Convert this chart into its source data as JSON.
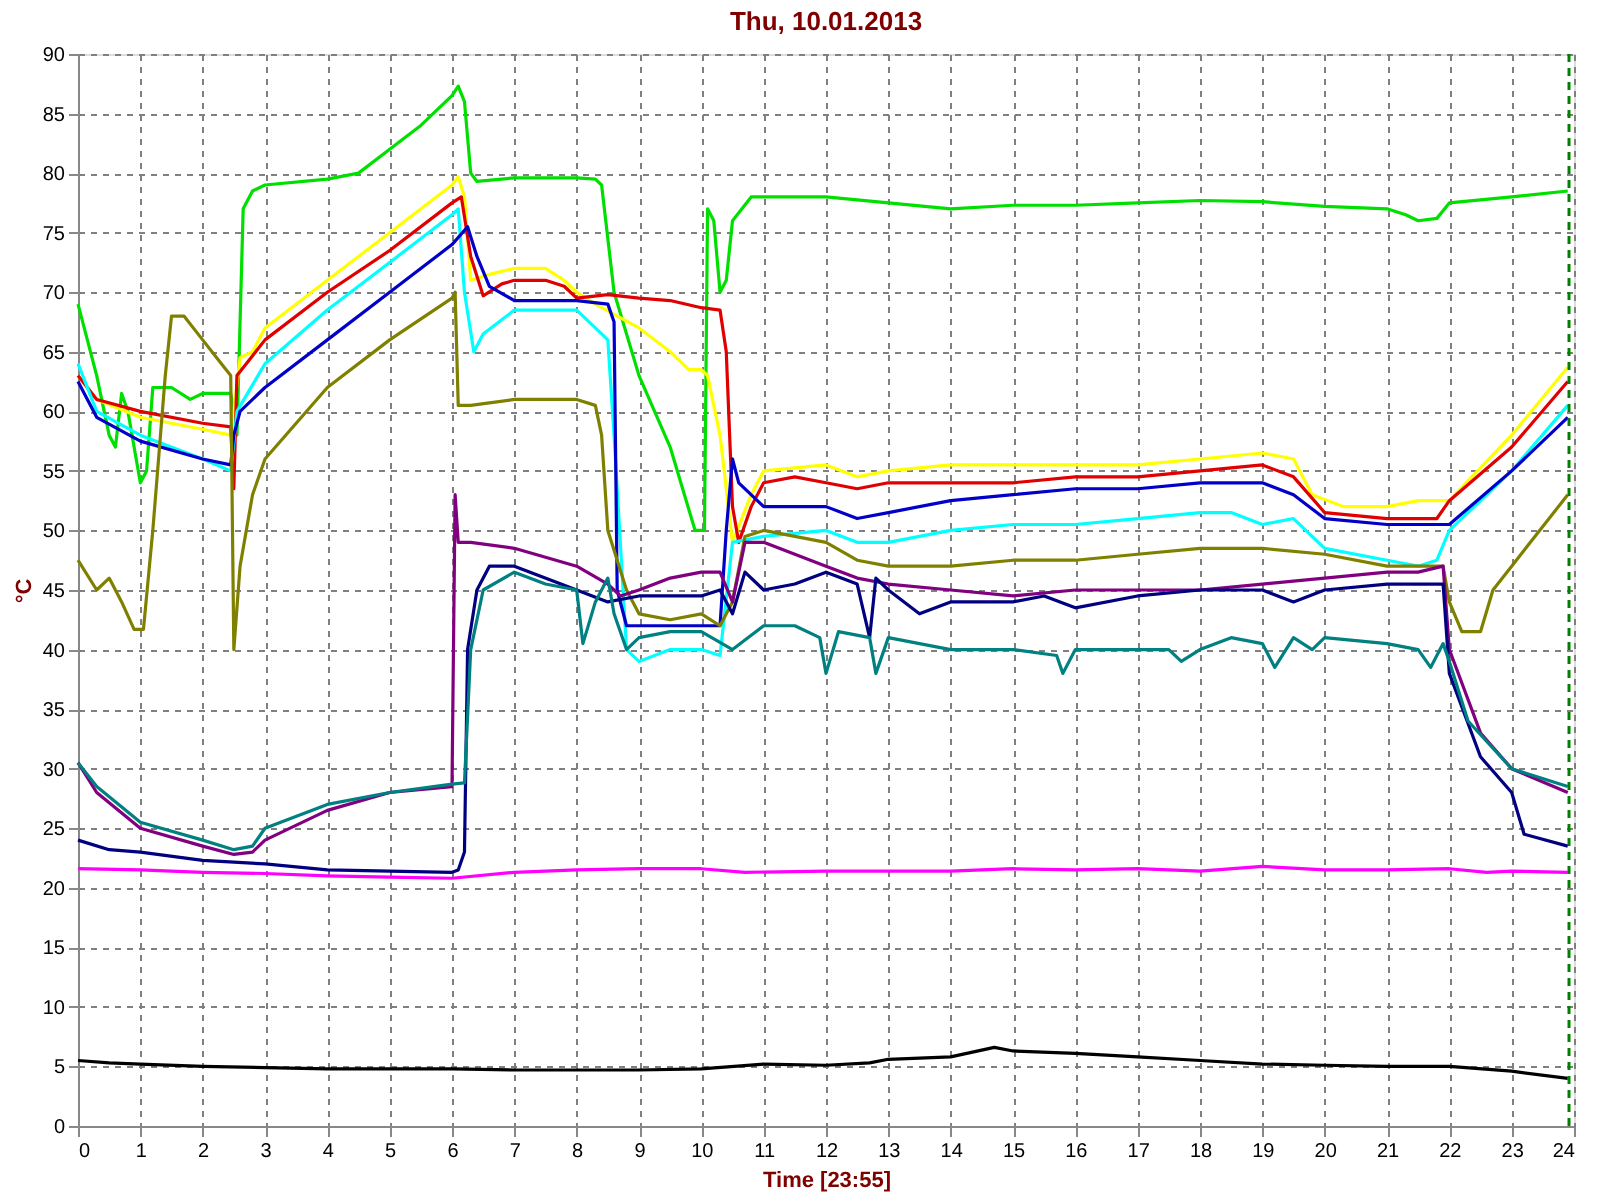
{
  "chart_data": {
    "type": "line",
    "title": "Thu, 10.01.2013",
    "xlabel": "Time [23:55]",
    "ylabel": "°C",
    "xlim": [
      0,
      24
    ],
    "ylim": [
      0,
      90
    ],
    "xticks": [
      0,
      1,
      2,
      3,
      4,
      5,
      6,
      7,
      8,
      9,
      10,
      11,
      12,
      13,
      14,
      15,
      16,
      17,
      18,
      19,
      20,
      21,
      22,
      23,
      24
    ],
    "yticks": [
      0,
      5,
      10,
      15,
      20,
      25,
      30,
      35,
      40,
      45,
      50,
      55,
      60,
      65,
      70,
      75,
      80,
      85,
      90
    ],
    "grid": true,
    "marker": "none",
    "line_style": "solid",
    "ref_lines": [
      {
        "axis": "x",
        "value": 23.92,
        "label": null,
        "color": "#008000",
        "line_style": "dashed"
      }
    ],
    "series": [
      {
        "color": "#00e000",
        "x": [
          0,
          0.3,
          0.5,
          0.6,
          0.7,
          0.8,
          1.0,
          1.1,
          1.2,
          1.5,
          1.8,
          2.0,
          2.45,
          2.55,
          2.65,
          2.8,
          3.0,
          4.0,
          4.5,
          5.0,
          5.5,
          6.0,
          6.1,
          6.2,
          6.3,
          6.4,
          7.0,
          8.0,
          8.3,
          8.4,
          8.6,
          9.0,
          9.5,
          9.9,
          10.05,
          10.1,
          10.2,
          10.3,
          10.4,
          10.5,
          10.8,
          12,
          13,
          14,
          15,
          16,
          17,
          18,
          19,
          20,
          21,
          21.3,
          21.5,
          21.8,
          22,
          23,
          23.9
        ],
        "values": [
          69,
          63,
          58,
          57,
          61.5,
          60,
          54,
          55,
          62,
          62,
          61,
          61.5,
          61.5,
          58,
          77,
          78.5,
          79,
          79.5,
          80,
          82,
          84,
          86.5,
          87.3,
          86,
          80,
          79.3,
          79.6,
          79.6,
          79.5,
          79,
          70,
          63,
          57,
          50,
          50,
          77,
          76,
          70,
          71,
          76,
          78,
          78,
          77.5,
          77,
          77.3,
          77.3,
          77.5,
          77.7,
          77.6,
          77.2,
          77,
          76.5,
          76,
          76.2,
          77.5,
          78,
          78.5
        ]
      },
      {
        "color": "#ffff00",
        "x": [
          0,
          0.3,
          1,
          2,
          2.45,
          2.5,
          2.6,
          2.8,
          3,
          4,
          5,
          6,
          6.1,
          6.2,
          6.3,
          6.6,
          7,
          7.5,
          7.8,
          8,
          8.3,
          9,
          9.5,
          9.8,
          10,
          10.1,
          10.3,
          10.5,
          10.8,
          11,
          12,
          12.5,
          13,
          14,
          15,
          16,
          17,
          18,
          19,
          19.5,
          19.8,
          20.3,
          21,
          21.5,
          22,
          23,
          23.9
        ],
        "values": [
          63,
          61,
          59.5,
          58.5,
          58,
          60,
          64.5,
          65,
          67,
          71,
          75,
          79,
          79.7,
          78,
          71,
          71.5,
          72,
          72,
          71,
          70,
          69,
          67,
          65,
          63.5,
          63.5,
          63,
          58,
          49,
          53,
          55,
          55.5,
          54.5,
          55,
          55.5,
          55.5,
          55.5,
          55.5,
          56,
          56.5,
          56,
          53,
          52,
          52,
          52.5,
          52.5,
          58,
          63.7
        ]
      },
      {
        "color": "#e00000",
        "x": [
          0,
          0.3,
          1,
          2,
          2.45,
          2.5,
          2.55,
          2.7,
          3,
          4,
          5,
          6,
          6.15,
          6.3,
          6.5,
          6.8,
          7,
          7.5,
          7.8,
          8,
          8.5,
          9,
          9.5,
          10,
          10.3,
          10.4,
          10.5,
          10.6,
          10.8,
          11,
          11.5,
          12,
          12.5,
          13,
          14,
          15,
          16,
          17,
          18,
          19,
          19.5,
          20,
          21,
          21.5,
          21.8,
          22,
          23,
          23.9
        ],
        "values": [
          63,
          61,
          60,
          59,
          58.7,
          53.5,
          63,
          64,
          66,
          70,
          73.5,
          77.5,
          78,
          73,
          69.7,
          70.7,
          71,
          71,
          70.5,
          69.5,
          69.8,
          69.5,
          69.3,
          68.7,
          68.5,
          65,
          52,
          49,
          52,
          54,
          54.5,
          54,
          53.5,
          54,
          54,
          54,
          54.5,
          54.5,
          55,
          55.5,
          54.5,
          51.5,
          51,
          51,
          51,
          52.5,
          57,
          62.5
        ]
      },
      {
        "color": "#00ffff",
        "x": [
          0,
          0.3,
          1,
          2,
          2.45,
          2.55,
          3,
          4,
          5,
          6,
          6.1,
          6.2,
          6.35,
          6.5,
          7,
          8,
          8.3,
          8.5,
          8.6,
          8.8,
          9,
          9.5,
          10,
          10.3,
          10.5,
          11,
          12,
          12.5,
          13,
          14,
          15,
          16,
          17,
          18,
          18.5,
          19,
          19.5,
          20,
          21,
          21.5,
          21.8,
          22,
          23,
          23.9
        ],
        "values": [
          64,
          60,
          58,
          56,
          55,
          60,
          64,
          68.5,
          72.5,
          76.5,
          77,
          70,
          65,
          66.5,
          68.5,
          68.5,
          67,
          66,
          58,
          40,
          39,
          40,
          40,
          39.5,
          49,
          49.5,
          50,
          49,
          49,
          50,
          50.5,
          50.5,
          51,
          51.5,
          51.5,
          50.5,
          51,
          48.5,
          47.5,
          47,
          47.5,
          50,
          55,
          60.5
        ]
      },
      {
        "color": "#0000c8",
        "x": [
          0,
          0.3,
          1,
          2,
          2.45,
          2.5,
          2.6,
          3,
          4,
          5,
          6,
          6.25,
          6.4,
          6.6,
          7,
          8,
          8.5,
          8.6,
          8.65,
          8.8,
          9,
          10,
          10.3,
          10.4,
          10.5,
          10.6,
          11,
          12,
          12.5,
          13,
          14,
          15,
          16,
          17,
          18,
          19,
          19.5,
          20,
          21,
          22,
          23,
          23.9
        ],
        "values": [
          62.5,
          59.5,
          57.5,
          56,
          55.5,
          58,
          60,
          62,
          66,
          70,
          74,
          75.5,
          73,
          70.5,
          69.3,
          69.3,
          69,
          67.5,
          45,
          42,
          42,
          42,
          42,
          50,
          56,
          54,
          52,
          52,
          51,
          51.5,
          52.5,
          53,
          53.5,
          53.5,
          54,
          54,
          53,
          51,
          50.5,
          50.5,
          55,
          59.5
        ]
      },
      {
        "color": "#808000",
        "x": [
          0,
          0.3,
          0.5,
          0.7,
          0.9,
          1.05,
          1.2,
          1.4,
          1.5,
          1.7,
          2,
          2.3,
          2.45,
          2.5,
          2.6,
          2.8,
          3,
          4,
          5,
          6,
          6.05,
          6.1,
          6.3,
          7,
          8,
          8.3,
          8.4,
          8.5,
          8.8,
          9,
          9.5,
          10,
          10.3,
          10.5,
          10.7,
          11,
          12,
          12.5,
          13,
          14,
          15,
          16,
          17,
          18,
          19,
          20,
          21,
          21.5,
          21.9,
          22,
          22.2,
          22.5,
          22.7,
          23,
          23.9
        ],
        "values": [
          47.5,
          45,
          46,
          44,
          41.7,
          41.7,
          50,
          63,
          68,
          68,
          66,
          64,
          63,
          40,
          47,
          53,
          56,
          62,
          66,
          69.5,
          70,
          60.5,
          60.5,
          61,
          61,
          60.5,
          58,
          50,
          45,
          43,
          42.5,
          43,
          42,
          44,
          49.5,
          50,
          49,
          47.5,
          47,
          47,
          47.5,
          47.5,
          48,
          48.5,
          48.5,
          48,
          47,
          47,
          47,
          44,
          41.5,
          41.5,
          45,
          47,
          53
        ]
      },
      {
        "color": "#800080",
        "x": [
          0,
          0.3,
          1,
          2,
          2.5,
          2.8,
          3,
          4,
          5,
          6,
          6.05,
          6.1,
          6.3,
          7,
          8,
          8.5,
          8.7,
          9,
          9.5,
          10,
          10.3,
          10.5,
          10.7,
          11,
          12,
          12.5,
          13,
          14,
          15,
          16,
          17,
          18,
          19,
          20,
          21,
          21.5,
          21.9,
          22,
          22.5,
          23,
          23.9
        ],
        "values": [
          30.5,
          28,
          25,
          23.5,
          22.8,
          23,
          24,
          26.5,
          28,
          28.5,
          53,
          49,
          49,
          48.5,
          47,
          45.5,
          44.5,
          45,
          46,
          46.5,
          46.5,
          44,
          49,
          49,
          47,
          46,
          45.5,
          45,
          44.5,
          45,
          45,
          45,
          45.5,
          46,
          46.5,
          46.5,
          47,
          40,
          33,
          30,
          28
        ]
      },
      {
        "color": "#000080",
        "x": [
          0,
          0.5,
          1,
          2,
          3,
          4,
          5,
          6,
          6.1,
          6.2,
          6.25,
          6.4,
          6.6,
          7,
          8,
          8.5,
          9,
          10,
          10.3,
          10.5,
          10.7,
          11,
          11.5,
          12,
          12.5,
          12.7,
          12.8,
          13,
          13.5,
          14,
          15,
          15.5,
          16,
          17,
          18,
          19,
          19.5,
          20,
          21,
          21.5,
          21.9,
          22,
          22.5,
          23,
          23.2,
          23.9
        ],
        "values": [
          24,
          23.2,
          23,
          22.3,
          22,
          21.5,
          21.4,
          21.3,
          21.5,
          23,
          40,
          45,
          47,
          47,
          45,
          44,
          44.5,
          44.5,
          45,
          43,
          46.5,
          45,
          45.5,
          46.5,
          45.5,
          41,
          46,
          45,
          43,
          44,
          44,
          44.5,
          43.5,
          44.5,
          45,
          45,
          44,
          45,
          45.5,
          45.5,
          45.5,
          38,
          31,
          28,
          24.5,
          23.5
        ]
      },
      {
        "color": "#008080",
        "x": [
          0,
          0.3,
          1,
          2,
          2.5,
          2.8,
          3,
          4,
          5,
          6,
          6.2,
          6.3,
          6.5,
          7,
          7.5,
          8,
          8.1,
          8.3,
          8.5,
          8.6,
          8.8,
          9,
          9.5,
          10,
          10.5,
          11,
          11.5,
          11.9,
          12,
          12.2,
          12.7,
          12.8,
          13,
          13.5,
          14,
          15,
          15.7,
          15.8,
          16,
          17,
          17.5,
          17.7,
          18,
          18.5,
          19,
          19.2,
          19.5,
          19.8,
          20,
          21,
          21.5,
          21.7,
          21.9,
          22,
          22.3,
          23,
          23.9
        ],
        "values": [
          30.5,
          28.5,
          25.5,
          24,
          23.2,
          23.5,
          25,
          27,
          28,
          28.7,
          28.8,
          40,
          45,
          46.5,
          45.5,
          45,
          40.5,
          44,
          46,
          43,
          40,
          41,
          41.5,
          41.5,
          40,
          42,
          42,
          41,
          38,
          41.5,
          41,
          38,
          41,
          40.5,
          40,
          40,
          39.5,
          38,
          40,
          40,
          40,
          39,
          40,
          41,
          40.5,
          38.5,
          41,
          40,
          41,
          40.5,
          40,
          38.5,
          40.5,
          39,
          34,
          30,
          28.5
        ]
      },
      {
        "color": "#ff00ff",
        "x": [
          0,
          1,
          2,
          3,
          4,
          5,
          6,
          7,
          8,
          9,
          10,
          10.7,
          12,
          14,
          15,
          16,
          17,
          18,
          19,
          20,
          21,
          22,
          22.6,
          23,
          23.9
        ],
        "values": [
          21.6,
          21.5,
          21.3,
          21.2,
          21,
          20.9,
          20.8,
          21.3,
          21.5,
          21.6,
          21.6,
          21.3,
          21.4,
          21.4,
          21.6,
          21.5,
          21.6,
          21.4,
          21.8,
          21.5,
          21.5,
          21.6,
          21.3,
          21.4,
          21.3
        ]
      },
      {
        "color": "#000000",
        "x": [
          0,
          0.5,
          1,
          2,
          3,
          4,
          5,
          6,
          7,
          8,
          9,
          10,
          11,
          12,
          12.7,
          13,
          14,
          14.7,
          15,
          16,
          17,
          18,
          19,
          20,
          21,
          22,
          23,
          23.9
        ],
        "values": [
          5.5,
          5.3,
          5.2,
          5,
          4.9,
          4.8,
          4.8,
          4.8,
          4.7,
          4.7,
          4.7,
          4.8,
          5.2,
          5.1,
          5.3,
          5.6,
          5.8,
          6.6,
          6.3,
          6.1,
          5.8,
          5.5,
          5.2,
          5.1,
          5,
          5,
          4.6,
          4
        ]
      }
    ]
  }
}
